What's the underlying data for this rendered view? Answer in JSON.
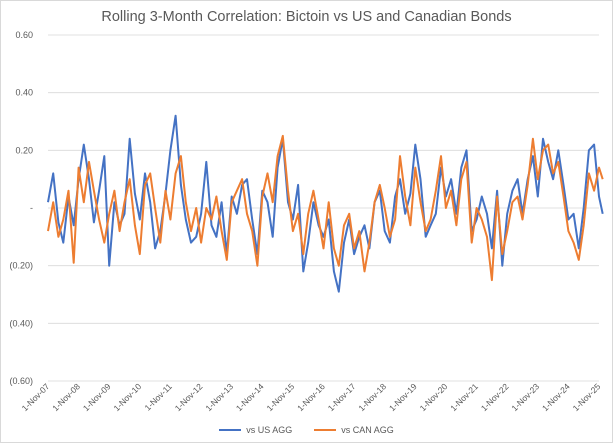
{
  "chart_data": {
    "type": "line",
    "title": "Rolling 3-Month Correlation: Bictoin vs US and Canadian Bonds",
    "xlabel": "",
    "ylabel": "",
    "ylim": [
      -0.6,
      0.6
    ],
    "y_ticks": [
      {
        "value": 0.6,
        "label": "0.60"
      },
      {
        "value": 0.4,
        "label": "0.40"
      },
      {
        "value": 0.2,
        "label": "0.20"
      },
      {
        "value": 0.0,
        "label": "-"
      },
      {
        "value": -0.2,
        "label": "(0.20)"
      },
      {
        "value": -0.4,
        "label": "(0.40)"
      },
      {
        "value": -0.6,
        "label": "(0.60)"
      }
    ],
    "x_tick_labels": [
      "1-Nov-07",
      "1-Nov-08",
      "1-Nov-09",
      "1-Nov-10",
      "1-Nov-11",
      "1-Nov-12",
      "1-Nov-13",
      "1-Nov-14",
      "1-Nov-15",
      "1-Nov-16",
      "1-Nov-17",
      "1-Nov-18",
      "1-Nov-19",
      "1-Nov-20",
      "1-Nov-21",
      "1-Nov-22",
      "1-Nov-23",
      "1-Nov-24",
      "1-Nov-25"
    ],
    "gridlines": "horizontal",
    "legend_position": "bottom",
    "x": [
      2007.83,
      2008.0,
      2008.17,
      2008.33,
      2008.5,
      2008.67,
      2008.83,
      2009.0,
      2009.17,
      2009.33,
      2009.5,
      2009.67,
      2009.83,
      2010.0,
      2010.17,
      2010.33,
      2010.5,
      2010.67,
      2010.83,
      2011.0,
      2011.17,
      2011.33,
      2011.5,
      2011.67,
      2011.83,
      2012.0,
      2012.17,
      2012.33,
      2012.5,
      2012.67,
      2012.83,
      2013.0,
      2013.17,
      2013.33,
      2013.5,
      2013.67,
      2013.83,
      2014.0,
      2014.17,
      2014.33,
      2014.5,
      2014.67,
      2014.83,
      2015.0,
      2015.17,
      2015.33,
      2015.5,
      2015.67,
      2015.83,
      2016.0,
      2016.17,
      2016.33,
      2016.5,
      2016.67,
      2016.83,
      2017.0,
      2017.17,
      2017.33,
      2017.5,
      2017.67,
      2017.83,
      2018.0,
      2018.17,
      2018.33,
      2018.5,
      2018.67,
      2018.83,
      2019.0,
      2019.17,
      2019.33,
      2019.5,
      2019.67,
      2019.83,
      2020.0,
      2020.17,
      2020.33,
      2020.5,
      2020.67,
      2020.83,
      2021.0,
      2021.17,
      2021.33,
      2021.5,
      2021.67,
      2021.83,
      2022.0,
      2022.17,
      2022.33,
      2022.5,
      2022.67,
      2022.83,
      2023.0,
      2023.17,
      2023.33,
      2023.5,
      2023.67,
      2023.83,
      2024.0,
      2024.17,
      2024.33,
      2024.5,
      2024.67,
      2024.83,
      2025.0,
      2025.17,
      2025.33,
      2025.5,
      2025.67,
      2025.83,
      2025.95
    ],
    "series": [
      {
        "name": "vs US AGG",
        "color": "#4472C4",
        "values": [
          0.02,
          0.12,
          -0.05,
          -0.12,
          0.04,
          -0.06,
          0.1,
          0.22,
          0.1,
          -0.05,
          0.06,
          0.18,
          -0.2,
          0.02,
          -0.06,
          -0.02,
          0.24,
          0.05,
          -0.04,
          0.12,
          0.02,
          -0.14,
          -0.08,
          0.05,
          0.2,
          0.32,
          0.08,
          -0.04,
          -0.12,
          -0.1,
          -0.02,
          0.16,
          -0.06,
          -0.1,
          0.02,
          -0.16,
          0.04,
          -0.02,
          0.08,
          0.1,
          -0.04,
          -0.16,
          0.06,
          0.02,
          -0.1,
          0.14,
          0.24,
          0.02,
          -0.04,
          0.08,
          -0.22,
          -0.12,
          0.02,
          -0.06,
          -0.1,
          -0.04,
          -0.22,
          -0.29,
          -0.12,
          -0.04,
          -0.16,
          -0.1,
          -0.06,
          -0.14,
          0.02,
          0.06,
          -0.08,
          -0.12,
          0.04,
          0.1,
          -0.02,
          0.05,
          0.22,
          0.1,
          -0.1,
          -0.06,
          -0.02,
          0.14,
          0.04,
          0.1,
          -0.02,
          0.14,
          0.2,
          -0.08,
          -0.04,
          0.04,
          -0.02,
          -0.14,
          0.06,
          -0.2,
          -0.02,
          0.06,
          0.1,
          -0.02,
          0.1,
          0.18,
          0.04,
          0.24,
          0.16,
          0.1,
          0.2,
          0.08,
          -0.04,
          -0.02,
          -0.14,
          0.0,
          0.2,
          0.22,
          0.04,
          -0.02
        ]
      },
      {
        "name": "vs CAN AGG",
        "color": "#ED7D31",
        "values": [
          -0.08,
          0.02,
          -0.1,
          -0.04,
          0.06,
          -0.19,
          0.14,
          0.02,
          0.16,
          0.06,
          -0.04,
          -0.12,
          -0.02,
          0.06,
          -0.08,
          0.02,
          0.1,
          -0.06,
          -0.16,
          0.08,
          0.12,
          0.0,
          -0.12,
          0.06,
          -0.04,
          0.12,
          0.18,
          0.02,
          -0.08,
          0.0,
          -0.12,
          0.0,
          -0.04,
          0.04,
          -0.08,
          -0.18,
          0.02,
          0.06,
          0.1,
          -0.02,
          -0.08,
          -0.2,
          0.04,
          0.12,
          0.02,
          0.18,
          0.25,
          0.06,
          -0.08,
          -0.02,
          -0.16,
          -0.02,
          0.06,
          -0.04,
          -0.14,
          0.02,
          -0.14,
          -0.2,
          -0.06,
          -0.02,
          -0.14,
          -0.08,
          -0.22,
          -0.12,
          0.02,
          0.08,
          0.0,
          -0.1,
          -0.04,
          0.18,
          0.04,
          -0.06,
          0.14,
          0.02,
          -0.08,
          -0.04,
          0.06,
          0.18,
          0.0,
          0.06,
          -0.06,
          0.1,
          0.16,
          -0.12,
          0.0,
          -0.04,
          -0.1,
          -0.25,
          0.04,
          -0.16,
          -0.08,
          0.02,
          0.04,
          -0.04,
          0.08,
          0.24,
          0.1,
          0.2,
          0.22,
          0.12,
          0.16,
          0.04,
          -0.08,
          -0.12,
          -0.18,
          -0.06,
          0.12,
          0.06,
          0.14,
          0.1
        ]
      }
    ]
  }
}
